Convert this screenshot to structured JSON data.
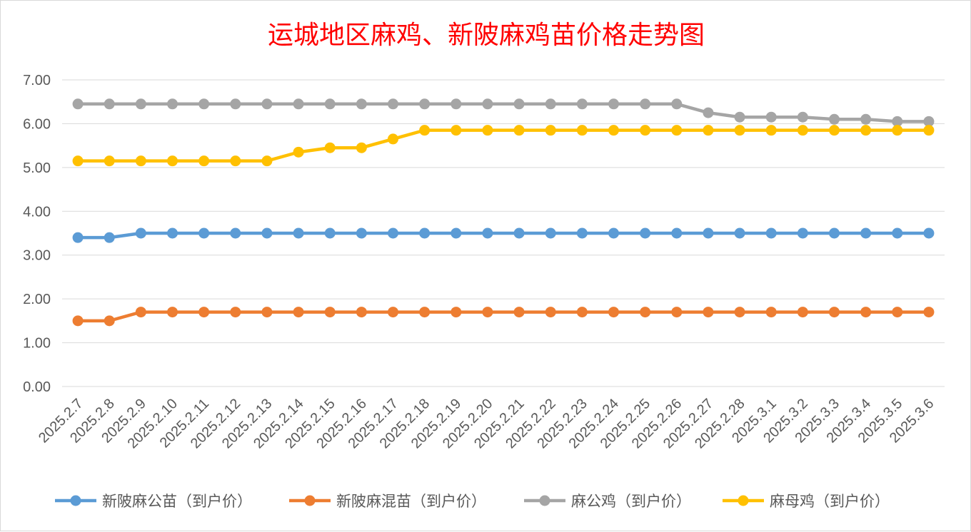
{
  "chart_data": {
    "type": "line",
    "title": "运城地区麻鸡、新陂麻鸡苗价格走势图",
    "xlabel": "",
    "ylabel": "",
    "ylim": [
      0,
      7
    ],
    "yticks": [
      "0.00",
      "1.00",
      "2.00",
      "3.00",
      "4.00",
      "5.00",
      "6.00",
      "7.00"
    ],
    "grid": true,
    "legend_position": "bottom",
    "categories": [
      "2025.2.7",
      "2025.2.8",
      "2025.2.9",
      "2025.2.10",
      "2025.2.11",
      "2025.2.12",
      "2025.2.13",
      "2025.2.14",
      "2025.2.15",
      "2025.2.16",
      "2025.2.17",
      "2025.2.18",
      "2025.2.19",
      "2025.2.20",
      "2025.2.21",
      "2025.2.22",
      "2025.2.23",
      "2025.2.24",
      "2025.2.25",
      "2025.2.26",
      "2025.2.27",
      "2025.2.28",
      "2025.3.1",
      "2025.3.2",
      "2025.3.3",
      "2025.3.4",
      "2025.3.5",
      "2025.3.6"
    ],
    "series": [
      {
        "name": "新陂麻公苗（到户价）",
        "color": "#5b9bd5",
        "values": [
          3.4,
          3.4,
          3.5,
          3.5,
          3.5,
          3.5,
          3.5,
          3.5,
          3.5,
          3.5,
          3.5,
          3.5,
          3.5,
          3.5,
          3.5,
          3.5,
          3.5,
          3.5,
          3.5,
          3.5,
          3.5,
          3.5,
          3.5,
          3.5,
          3.5,
          3.5,
          3.5,
          3.5
        ]
      },
      {
        "name": "新陂麻混苗（到户价）",
        "color": "#ed7d31",
        "values": [
          1.5,
          1.5,
          1.7,
          1.7,
          1.7,
          1.7,
          1.7,
          1.7,
          1.7,
          1.7,
          1.7,
          1.7,
          1.7,
          1.7,
          1.7,
          1.7,
          1.7,
          1.7,
          1.7,
          1.7,
          1.7,
          1.7,
          1.7,
          1.7,
          1.7,
          1.7,
          1.7,
          1.7
        ]
      },
      {
        "name": "麻公鸡（到户价）",
        "color": "#a5a5a5",
        "values": [
          6.45,
          6.45,
          6.45,
          6.45,
          6.45,
          6.45,
          6.45,
          6.45,
          6.45,
          6.45,
          6.45,
          6.45,
          6.45,
          6.45,
          6.45,
          6.45,
          6.45,
          6.45,
          6.45,
          6.45,
          6.25,
          6.15,
          6.15,
          6.15,
          6.1,
          6.1,
          6.05,
          6.05
        ]
      },
      {
        "name": "麻母鸡（到户价）",
        "color": "#ffc000",
        "values": [
          5.15,
          5.15,
          5.15,
          5.15,
          5.15,
          5.15,
          5.15,
          5.35,
          5.45,
          5.45,
          5.65,
          5.85,
          5.85,
          5.85,
          5.85,
          5.85,
          5.85,
          5.85,
          5.85,
          5.85,
          5.85,
          5.85,
          5.85,
          5.85,
          5.85,
          5.85,
          5.85,
          5.85
        ]
      }
    ]
  }
}
